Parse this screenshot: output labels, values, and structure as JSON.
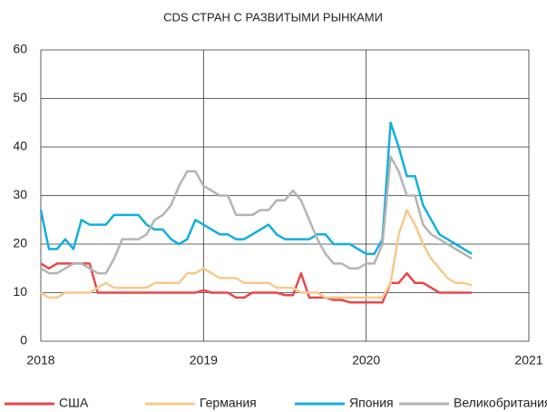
{
  "chart_data": {
    "type": "line",
    "title": "CDS СТРАН С РАЗВИТЫМИ РЫНКАМИ",
    "x": [
      2018,
      2018.05,
      2018.1,
      2018.15,
      2018.2,
      2018.25,
      2018.3,
      2018.35,
      2018.4,
      2018.45,
      2018.5,
      2018.55,
      2018.6,
      2018.65,
      2018.7,
      2018.75,
      2018.8,
      2018.85,
      2018.9,
      2018.95,
      2019,
      2019.05,
      2019.1,
      2019.15,
      2019.2,
      2019.25,
      2019.3,
      2019.35,
      2019.4,
      2019.45,
      2019.5,
      2019.55,
      2019.6,
      2019.65,
      2019.7,
      2019.75,
      2019.8,
      2019.85,
      2019.9,
      2019.95,
      2020,
      2020.05,
      2020.1,
      2020.15,
      2020.2,
      2020.25,
      2020.3,
      2020.35,
      2020.4,
      2020.45,
      2020.5,
      2020.55,
      2020.6,
      2020.65
    ],
    "series": [
      {
        "name": "США",
        "color": "#e8474a",
        "values": [
          16,
          15,
          16,
          16,
          16,
          16,
          16,
          10,
          10,
          10,
          10,
          10,
          10,
          10,
          10,
          10,
          10,
          10,
          10,
          10,
          10.5,
          10,
          10,
          10,
          9,
          9,
          10,
          10,
          10,
          10,
          9.5,
          9.5,
          14,
          9,
          9,
          9,
          8.5,
          8.5,
          8,
          8,
          8,
          8,
          8,
          12,
          12,
          14,
          12,
          12,
          11,
          10,
          10,
          10,
          10,
          10
        ]
      },
      {
        "name": "Германия",
        "color": "#f7c98b",
        "values": [
          10,
          9,
          9,
          10,
          10,
          10,
          10,
          11,
          12,
          11,
          11,
          11,
          11,
          11,
          12,
          12,
          12,
          12,
          14,
          14,
          15,
          14,
          13,
          13,
          13,
          12,
          12,
          12,
          12,
          11,
          11,
          11,
          10,
          10,
          10,
          9,
          9,
          9,
          9,
          9,
          9,
          9,
          9,
          12,
          22,
          27,
          24,
          20,
          17,
          15,
          13,
          12,
          12,
          11.5
        ]
      },
      {
        "name": "Япония",
        "color": "#10aee0",
        "values": [
          27,
          19,
          19,
          21,
          19,
          25,
          24,
          24,
          24,
          26,
          26,
          26,
          26,
          24,
          23,
          23,
          21,
          20,
          21,
          25,
          24,
          23,
          22,
          22,
          21,
          21,
          22,
          23,
          24,
          22,
          21,
          21,
          21,
          21,
          22,
          22,
          20,
          20,
          20,
          19,
          18,
          18,
          21,
          45,
          40,
          34,
          34,
          28,
          25,
          22,
          21,
          20,
          19,
          18
        ]
      },
      {
        "name": "Великобритания",
        "color": "#b3b3b3",
        "values": [
          15,
          14,
          14,
          15,
          16,
          16,
          15,
          14,
          14,
          17,
          21,
          21,
          21,
          22,
          25,
          26,
          28,
          32,
          35,
          35,
          32,
          31,
          30,
          30,
          26,
          26,
          26,
          27,
          27,
          29,
          29,
          31,
          29,
          25,
          21,
          18,
          16,
          16,
          15,
          15,
          16,
          16,
          20,
          38,
          35,
          30,
          30,
          24,
          22,
          21,
          20,
          19,
          18,
          17
        ]
      }
    ],
    "xlim": [
      2018,
      2021
    ],
    "xticks": [
      2018,
      2019,
      2020,
      2021
    ],
    "ylim": [
      0,
      60
    ],
    "yticks": [
      0,
      10,
      20,
      30,
      40,
      50,
      60
    ],
    "grid": true
  }
}
